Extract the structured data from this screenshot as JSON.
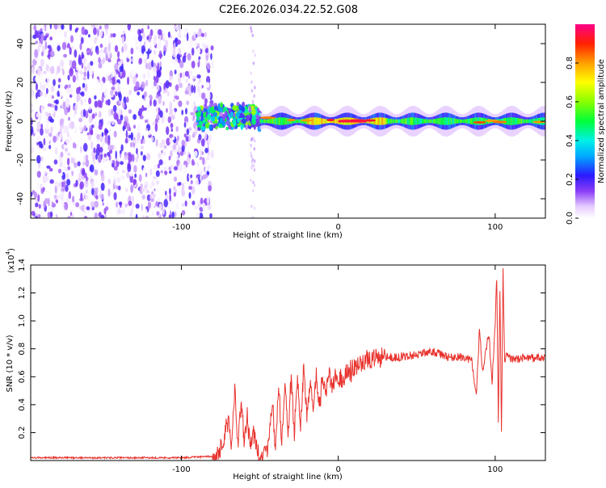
{
  "figure": {
    "title": "C2E6.2026.034.22.52.G08"
  },
  "chart_data": [
    {
      "type": "heatmap",
      "xlabel": "Height of straight line (km)",
      "ylabel": "Frequency (Hz)",
      "xlim": [
        -196,
        132
      ],
      "ylim": [
        -50,
        50
      ],
      "xticks": [
        -100,
        0,
        100
      ],
      "yticks": [
        -40,
        -20,
        0,
        20,
        40
      ],
      "colorbar": {
        "label": "Normalized spectral amplitude",
        "range": [
          0,
          1
        ],
        "ticks": [
          0.0,
          0.2,
          0.4,
          0.6,
          0.8
        ],
        "tick_labels": [
          "0.0",
          "0.2",
          "0.4",
          "0.6",
          "0.8"
        ]
      },
      "bands": [
        {
          "x_range": [
            -196,
            -80
          ],
          "description": "scattered noise across all frequencies",
          "amplitude_range": [
            0.0,
            0.2
          ]
        },
        {
          "x_range": [
            -90,
            -50
          ],
          "description": "signal onset, frequency spread +/-10 Hz",
          "center_hz": 2,
          "half_width_hz": 6
        },
        {
          "x_range": [
            -50,
            132
          ],
          "description": "narrow signal band near 0 Hz",
          "center_hz": 0,
          "half_width_hz": 2,
          "peak_amplitude": 0.95
        }
      ]
    },
    {
      "type": "line",
      "xlabel": "Height of straight line (km)",
      "ylabel": "SNR (10 * v/v)",
      "yscale_label": "(x10",
      "yscale_exp": "4",
      "yscale_close": ")",
      "xlim": [
        -196,
        132
      ],
      "ylim": [
        0,
        1.4
      ],
      "xticks": [
        -100,
        0,
        100
      ],
      "yticks": [
        0.2,
        0.4,
        0.6,
        0.8,
        1.0,
        1.2,
        1.4
      ],
      "ytick_labels": [
        "0.2",
        "0.4",
        "0.6",
        "0.8",
        "1.0",
        "1.2",
        "1.4"
      ],
      "series": [
        {
          "name": "SNR",
          "color": "#e8322d",
          "x": [
            -196,
            -150,
            -100,
            -80,
            -75,
            -70,
            -68,
            -66,
            -64,
            -62,
            -60,
            -58,
            -56,
            -54,
            -52,
            -50,
            -48,
            -45,
            -42,
            -40,
            -38,
            -36,
            -34,
            -32,
            -30,
            -28,
            -26,
            -24,
            -22,
            -20,
            -18,
            -16,
            -14,
            -12,
            -10,
            -8,
            -6,
            -4,
            -2,
            0,
            5,
            10,
            15,
            20,
            25,
            30,
            40,
            50,
            60,
            70,
            80,
            85,
            88,
            90,
            92,
            94,
            96,
            98,
            100,
            101,
            102,
            103,
            104,
            105,
            106,
            108,
            110,
            120,
            132
          ],
          "y": [
            0.02,
            0.02,
            0.02,
            0.03,
            0.08,
            0.3,
            0.12,
            0.52,
            0.1,
            0.4,
            0.15,
            0.3,
            0.1,
            0.2,
            0.08,
            0.05,
            0.03,
            0.1,
            0.45,
            0.05,
            0.55,
            0.1,
            0.6,
            0.15,
            0.62,
            0.2,
            0.58,
            0.25,
            0.64,
            0.3,
            0.56,
            0.35,
            0.62,
            0.38,
            0.6,
            0.45,
            0.66,
            0.5,
            0.62,
            0.56,
            0.62,
            0.66,
            0.7,
            0.72,
            0.74,
            0.74,
            0.74,
            0.76,
            0.78,
            0.74,
            0.74,
            0.72,
            0.45,
            0.95,
            0.62,
            0.78,
            0.9,
            0.55,
            0.98,
            1.32,
            0.25,
            1.22,
            0.18,
            1.4,
            0.72,
            0.76,
            0.72,
            0.74,
            0.73
          ]
        }
      ]
    }
  ]
}
